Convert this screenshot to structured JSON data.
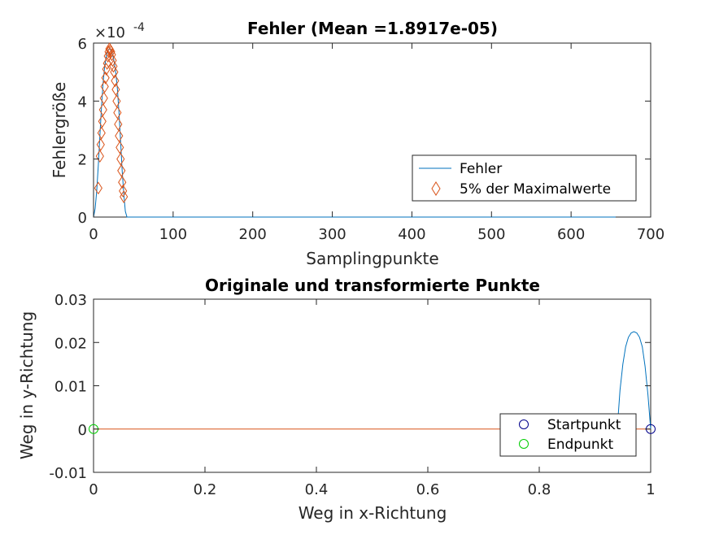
{
  "chart_data": [
    {
      "type": "line",
      "title": "Fehler (Mean =1.8917e-05)",
      "xlabel": "Samplingpunkte",
      "ylabel": "Fehlergröße",
      "xlim": [
        0,
        700
      ],
      "ylim": [
        0,
        0.0006
      ],
      "xticks": [
        "0",
        "100",
        "200",
        "300",
        "400",
        "500",
        "600",
        "700"
      ],
      "yticks": [
        "0",
        "2",
        "4",
        "6"
      ],
      "y_exponent_label": "×10",
      "y_exponent_value": "-4",
      "legend_position": "lower-right",
      "grid": false,
      "series": [
        {
          "name": "Fehler",
          "color": "#0072BD",
          "marker": "none",
          "x": [
            0,
            2,
            4,
            6,
            8,
            10,
            12,
            14,
            16,
            18,
            20,
            22,
            24,
            26,
            28,
            30,
            32,
            34,
            36,
            38,
            40,
            42,
            44,
            60,
            100,
            200,
            300,
            400,
            500,
            600,
            656
          ],
          "y": [
            0,
            3e-05,
            9e-05,
            0.00018,
            0.00028,
            0.00038,
            0.00046,
            0.00052,
            0.000555,
            0.000575,
            0.00058,
            0.000575,
            0.00056,
            0.000535,
            0.000495,
            0.00044,
            0.00036,
            0.00026,
            0.00016,
            8e-05,
            2e-05,
            0,
            0,
            0,
            0,
            0,
            0,
            0,
            0,
            0,
            0
          ]
        },
        {
          "name": "5% der Maximalwerte",
          "color": "#D95319",
          "marker": "diamond",
          "x": [
            6,
            8,
            9,
            10,
            11,
            12,
            13,
            14,
            15,
            16,
            17,
            18,
            19,
            20,
            21,
            22,
            23,
            24,
            25,
            26,
            27,
            28,
            29,
            30,
            31,
            32,
            33,
            34,
            35,
            36,
            37,
            38
          ],
          "y": [
            0.0001,
            0.00021,
            0.00025,
            0.00029,
            0.00033,
            0.00037,
            0.00041,
            0.00045,
            0.00048,
            0.00051,
            0.00053,
            0.000555,
            0.00057,
            0.00058,
            0.000575,
            0.00057,
            0.00056,
            0.00054,
            0.00052,
            0.0005,
            0.00047,
            0.00044,
            0.0004,
            0.00036,
            0.00032,
            0.00028,
            0.00024,
            0.0002,
            0.00016,
            0.00012,
            9e-05,
            7e-05
          ]
        }
      ]
    },
    {
      "type": "line",
      "title": "Originale und transformierte Punkte",
      "xlabel": "Weg in x-Richtung",
      "ylabel": "Weg in y-Richtung",
      "xlim": [
        0,
        1
      ],
      "ylim": [
        -0.01,
        0.03
      ],
      "xticks": [
        "0",
        "0.2",
        "0.4",
        "0.6",
        "0.8",
        "1"
      ],
      "yticks": [
        "-0.01",
        "0",
        "0.01",
        "0.02",
        "0.03"
      ],
      "legend_position": "lower-right",
      "grid": false,
      "series": [
        {
          "color": "#0072BD",
          "marker": "none",
          "x": [
            0.94,
            0.945,
            0.95,
            0.955,
            0.96,
            0.965,
            0.97,
            0.975,
            0.98,
            0.985,
            0.99,
            0.995,
            1.0
          ],
          "y": [
            0.0,
            0.009,
            0.015,
            0.019,
            0.0212,
            0.0222,
            0.0225,
            0.0222,
            0.0212,
            0.019,
            0.0145,
            0.008,
            0.0
          ]
        },
        {
          "color": "#D95319",
          "marker": "none",
          "x": [
            0,
            1
          ],
          "y": [
            0,
            0
          ]
        },
        {
          "name": "Startpunkt",
          "color": "#00008B",
          "marker": "circle",
          "x": [
            1.0
          ],
          "y": [
            0.0
          ]
        },
        {
          "name": "Endpunkt",
          "color": "#00CC00",
          "marker": "circle",
          "x": [
            0.0
          ],
          "y": [
            0.0
          ]
        }
      ]
    }
  ]
}
